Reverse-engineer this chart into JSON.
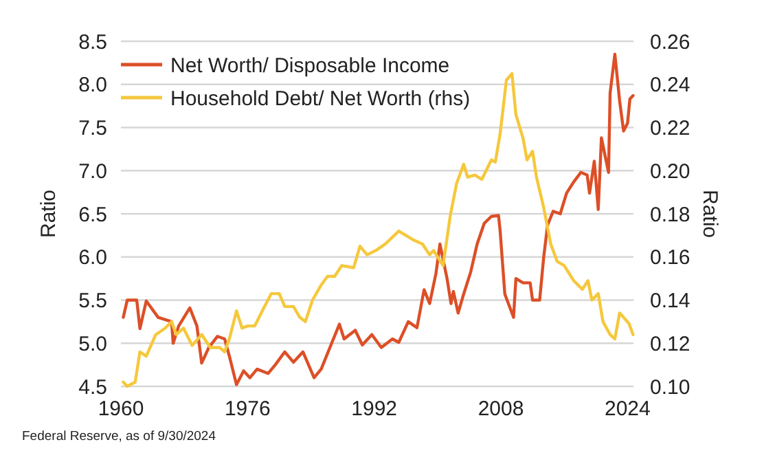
{
  "chart_data": {
    "type": "line",
    "xlim": [
      1960,
      2024.75
    ],
    "xticks": [
      1960,
      1976,
      1992,
      2008,
      2024
    ],
    "ylim": [
      4.5,
      8.5
    ],
    "yticks": [
      4.5,
      {
        "value": 5,
        "label": "5.0"
      },
      5.5,
      {
        "value": 6,
        "label": "6.0"
      },
      6.5,
      {
        "value": 7,
        "label": "7.0"
      },
      7.5,
      {
        "value": 8,
        "label": "8.0"
      },
      8.5
    ],
    "y2lim": [
      0.1,
      0.26
    ],
    "y2ticks": [
      {
        "value": 0.1,
        "label": "0.10"
      },
      0.12,
      0.14,
      0.16,
      0.18,
      {
        "value": 0.2,
        "label": "0.20"
      },
      0.22,
      0.24,
      0.26
    ],
    "ylabel": "Ratio",
    "y2label": "Ratio",
    "grid": "y",
    "legend": "top left",
    "line_style": "solid",
    "annotations": [
      "Federal Reserve, as of 9/30/2024"
    ],
    "series": [
      {
        "name": "Net Worth/ Disposable Income",
        "color": "#dc4f27",
        "x": [
          1960.3,
          1960.8,
          1962,
          1962.4,
          1963.2,
          1964.7,
          1966.4,
          1966.6,
          1967.3,
          1968.7,
          1969.6,
          1970.2,
          1971.1,
          1972.2,
          1973.1,
          1973.7,
          1974.6,
          1975.5,
          1976.3,
          1977.2,
          1978.6,
          1979.5,
          1980.7,
          1981.8,
          1983,
          1984.4,
          1985.3,
          1986.4,
          1987.6,
          1988.2,
          1989.6,
          1990.5,
          1991.7,
          1992.9,
          1994.3,
          1995.1,
          1996.3,
          1997.4,
          1998.3,
          1999,
          1999.8,
          2000.3,
          2001.2,
          2001.7,
          2002,
          2002.6,
          2003.3,
          2004.2,
          2005,
          2005.9,
          2006.8,
          2007.7,
          2007.9,
          2008.5,
          2009.6,
          2009.9,
          2010.8,
          2011.7,
          2012,
          2012.9,
          2013.4,
          2013.9,
          2014.6,
          2015.5,
          2016.3,
          2017.2,
          2018.1,
          2018.9,
          2019.2,
          2019.8,
          2020.3,
          2020.7,
          2021.6,
          2021.8,
          2022.4,
          2023,
          2023.5,
          2024,
          2024.3,
          2024.7
        ],
        "values": [
          5.3,
          5.5,
          5.5,
          5.17,
          5.49,
          5.3,
          5.25,
          5.0,
          5.2,
          5.41,
          5.2,
          4.77,
          4.95,
          5.08,
          5.05,
          4.85,
          4.52,
          4.68,
          4.6,
          4.7,
          4.65,
          4.75,
          4.9,
          4.78,
          4.9,
          4.6,
          4.7,
          4.95,
          5.22,
          5.05,
          5.15,
          4.98,
          5.1,
          4.95,
          5.05,
          5.01,
          5.25,
          5.18,
          5.62,
          5.46,
          5.81,
          6.15,
          5.75,
          5.46,
          5.6,
          5.35,
          5.57,
          5.83,
          6.15,
          6.39,
          6.47,
          6.48,
          6.31,
          5.57,
          5.3,
          5.75,
          5.7,
          5.7,
          5.5,
          5.5,
          5.99,
          6.37,
          6.53,
          6.5,
          6.74,
          6.87,
          6.98,
          6.95,
          6.74,
          7.11,
          6.55,
          7.38,
          6.98,
          7.9,
          8.35,
          7.81,
          7.46,
          7.55,
          7.83,
          7.87
        ]
      },
      {
        "name": "Household Debt/ Net Worth (rhs)",
        "color": "#f5c83c",
        "axis": "y2",
        "x": [
          1960.3,
          1960.8,
          1961.8,
          1962.4,
          1963.2,
          1964.4,
          1965.6,
          1966.4,
          1967,
          1967.9,
          1969,
          1970.2,
          1971.3,
          1972.5,
          1973.1,
          1973.7,
          1974.6,
          1975.3,
          1976,
          1976.9,
          1978,
          1979,
          1980,
          1980.7,
          1981.8,
          1982.6,
          1983.3,
          1984.2,
          1985.3,
          1986.1,
          1987,
          1987.9,
          1989.4,
          1990.2,
          1991.1,
          1992.2,
          1993.4,
          1995.1,
          1996.9,
          1998.1,
          1999,
          1999.5,
          2000.7,
          2001.6,
          2002.4,
          2003.3,
          2003.8,
          2004.7,
          2005.6,
          2006.8,
          2007.3,
          2007.9,
          2008.7,
          2009.4,
          2009.9,
          2010.8,
          2011.3,
          2012,
          2012.5,
          2013.4,
          2014.3,
          2015.1,
          2016,
          2017.2,
          2018.3,
          2019,
          2019.5,
          2020.3,
          2020.9,
          2021.8,
          2022.4,
          2023,
          2023.5,
          2024.2,
          2024.7
        ],
        "values": [
          0.102,
          0.1,
          0.102,
          0.116,
          0.114,
          0.124,
          0.127,
          0.13,
          0.124,
          0.127,
          0.119,
          0.124,
          0.118,
          0.118,
          0.116,
          0.122,
          0.135,
          0.127,
          0.128,
          0.128,
          0.136,
          0.143,
          0.143,
          0.137,
          0.137,
          0.132,
          0.13,
          0.14,
          0.147,
          0.151,
          0.151,
          0.156,
          0.155,
          0.165,
          0.161,
          0.163,
          0.166,
          0.172,
          0.168,
          0.166,
          0.161,
          0.163,
          0.156,
          0.179,
          0.194,
          0.203,
          0.197,
          0.198,
          0.196,
          0.205,
          0.204,
          0.217,
          0.242,
          0.245,
          0.226,
          0.215,
          0.205,
          0.209,
          0.197,
          0.183,
          0.166,
          0.158,
          0.156,
          0.149,
          0.145,
          0.149,
          0.14,
          0.143,
          0.13,
          0.124,
          0.122,
          0.134,
          0.132,
          0.129,
          0.124
        ]
      }
    ]
  }
}
